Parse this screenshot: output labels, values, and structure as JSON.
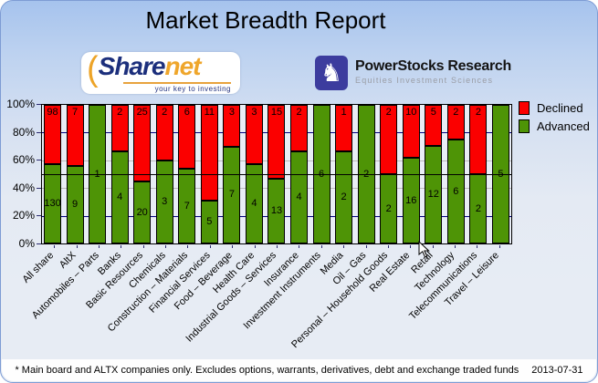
{
  "header": {
    "title": "Market Breadth Report"
  },
  "logos": {
    "sharenet": {
      "word_share": "Share",
      "word_net": "net",
      "tagline": "your key to investing",
      "arc_glyph": "(",
      "brand_navy": "#1c2f7c",
      "brand_orange": "#efa62b"
    },
    "powerstocks": {
      "title": "PowerStocks  Research",
      "subtitle": "Equities Investment Sciences",
      "knight_glyph": "♞",
      "brand_blue": "#3c3c9e"
    }
  },
  "chart_data": {
    "type": "bar",
    "stacked": true,
    "percent_stacked": true,
    "title": "",
    "xlabel": "",
    "ylabel": "",
    "ylim": [
      0,
      100
    ],
    "y_ticks": [
      "0%",
      "20%",
      "40%",
      "60%",
      "80%",
      "100%"
    ],
    "categories": [
      "All share",
      "AltX",
      "Automobiles – Parts",
      "Banks",
      "Basic Resources",
      "Chemicals",
      "Construction – Materials",
      "Financial Services",
      "Food – Beverage",
      "Health Care",
      "Industrial Goods – Services",
      "Insurance",
      "Investment Instruments",
      "Media",
      "Oil – Gas",
      "Personal – Household Goods",
      "Real Estate",
      "Retail",
      "Technology",
      "Telecommunications",
      "Travel – Leisure"
    ],
    "series": [
      {
        "name": "Declined",
        "color": "#fb0000",
        "values": [
          98,
          7,
          0,
          2,
          25,
          2,
          6,
          11,
          3,
          3,
          15,
          2,
          0,
          1,
          0,
          2,
          10,
          5,
          2,
          2,
          0
        ]
      },
      {
        "name": "Advanced",
        "color": "#4e9406",
        "values": [
          130,
          9,
          1,
          4,
          20,
          3,
          7,
          5,
          7,
          4,
          13,
          4,
          6,
          2,
          2,
          2,
          16,
          12,
          6,
          2,
          5
        ]
      }
    ],
    "legend": [
      "Declined",
      "Advanced"
    ],
    "legend_position": "top-right",
    "grid": true,
    "gridlines": [
      {
        "percent": 20,
        "color": "#000080"
      },
      {
        "percent": 40,
        "color": "#bbbbbb"
      },
      {
        "percent": 60,
        "color": "#bbbbbb"
      },
      {
        "percent": 80,
        "color": "#000080"
      }
    ],
    "reference_line_percent": 50,
    "reference_line_color": "#000000"
  },
  "footer": {
    "note": "* Main board and ALTX companies only. Excludes options, warrants, derivatives, debt and exchange traded funds",
    "date": "2013-07-31"
  }
}
